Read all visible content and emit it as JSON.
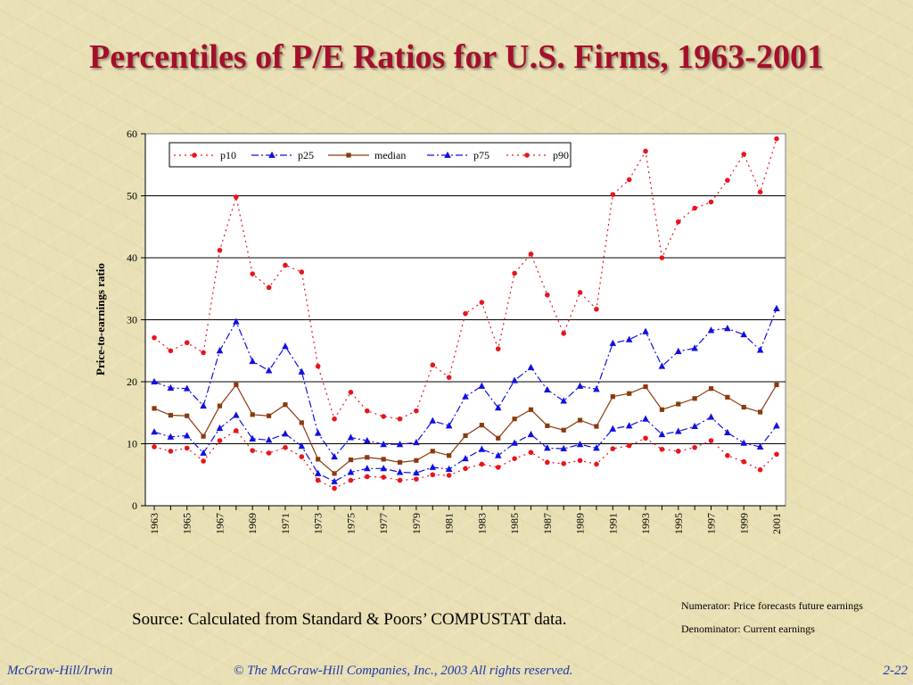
{
  "slide": {
    "title": "Percentiles of P/E Ratios for U.S. Firms, 1963-2001",
    "source": "Source:  Calculated from Standard & Poors’ COMPUSTAT data.",
    "note_numerator": "Numerator: Price forecasts future earnings",
    "note_denominator": "Denominator: Current earnings",
    "footer_left": "McGraw-Hill/Irwin",
    "footer_center": "© The McGraw-Hill Companies, Inc., 2003  All rights reserved.",
    "footer_right": "2-22"
  },
  "colors": {
    "title": "#a3102b",
    "p10": "#e8141c",
    "p25": "#1010e0",
    "median": "#8b3a0e",
    "p75": "#1010e0",
    "p90": "#e8141c",
    "footer_text": "#1c3aa8"
  },
  "chart_data": {
    "type": "line",
    "ylabel": "Price-to-earnings ratio",
    "xlabel": "",
    "ylim": [
      0,
      60
    ],
    "yticks": [
      0,
      10,
      20,
      30,
      40,
      50,
      60
    ],
    "grid": "horizontal",
    "legend_position": "top",
    "x": [
      1963,
      1964,
      1965,
      1966,
      1967,
      1968,
      1969,
      1970,
      1971,
      1972,
      1973,
      1974,
      1975,
      1976,
      1977,
      1978,
      1979,
      1980,
      1981,
      1982,
      1983,
      1984,
      1985,
      1986,
      1987,
      1988,
      1989,
      1990,
      1991,
      1992,
      1993,
      1994,
      1995,
      1996,
      1997,
      1998,
      1999,
      2000,
      2001
    ],
    "xtick_labels": [
      "1963",
      "1965",
      "1967",
      "1969",
      "1971",
      "1973",
      "1975",
      "1977",
      "1979",
      "1981",
      "1983",
      "1985",
      "1987",
      "1989",
      "1991",
      "1993",
      "1995",
      "1997",
      "1999",
      "2001"
    ],
    "series": [
      {
        "name": "p10",
        "key": "p10",
        "marker": "circle",
        "dash": "2 4",
        "values": [
          9.5,
          8.8,
          9.3,
          7.2,
          10.5,
          12.1,
          8.9,
          8.5,
          9.4,
          7.9,
          4.1,
          2.8,
          4.1,
          4.7,
          4.6,
          4.1,
          4.3,
          5.0,
          4.9,
          6.0,
          6.7,
          6.2,
          7.6,
          8.6,
          7.0,
          6.8,
          7.3,
          6.7,
          9.2,
          9.7,
          10.9,
          9.1,
          8.8,
          9.4,
          10.5,
          8.1,
          7.1,
          5.8,
          8.3
        ]
      },
      {
        "name": "p25",
        "key": "p25",
        "marker": "triangle",
        "dash": "8 3 2 3",
        "values": [
          11.9,
          11.1,
          11.3,
          8.5,
          12.5,
          14.6,
          10.8,
          10.6,
          11.6,
          9.6,
          5.2,
          3.9,
          5.4,
          6.0,
          6.0,
          5.4,
          5.3,
          6.2,
          5.9,
          7.6,
          9.1,
          8.1,
          10.1,
          11.5,
          9.3,
          9.2,
          9.9,
          9.3,
          12.4,
          12.9,
          14.0,
          11.5,
          12.0,
          12.8,
          14.3,
          11.8,
          10.1,
          9.5,
          12.9
        ]
      },
      {
        "name": "median",
        "key": "median",
        "marker": "square",
        "dash": "",
        "values": [
          15.7,
          14.6,
          14.5,
          11.2,
          16.1,
          19.5,
          14.7,
          14.5,
          16.3,
          13.4,
          7.5,
          5.2,
          7.4,
          7.8,
          7.5,
          7.0,
          7.3,
          8.8,
          8.1,
          11.3,
          13.0,
          10.9,
          14.0,
          15.5,
          12.9,
          12.2,
          13.8,
          12.8,
          17.6,
          18.1,
          19.2,
          15.5,
          16.4,
          17.3,
          18.9,
          17.5,
          15.9,
          15.1,
          19.5
        ]
      },
      {
        "name": "p75",
        "key": "p75",
        "marker": "triangle",
        "dash": "8 3 2 3",
        "values": [
          20.0,
          19.0,
          18.9,
          16.1,
          25.0,
          29.7,
          23.3,
          21.8,
          25.7,
          21.6,
          11.7,
          7.9,
          11.0,
          10.5,
          9.9,
          9.9,
          10.2,
          13.7,
          12.9,
          17.6,
          19.3,
          15.8,
          20.2,
          22.3,
          18.7,
          16.9,
          19.3,
          18.8,
          26.2,
          26.8,
          28.1,
          22.5,
          24.9,
          25.4,
          28.3,
          28.6,
          27.6,
          25.1,
          31.8
        ]
      },
      {
        "name": "p90",
        "key": "p90",
        "marker": "circle",
        "dash": "2 4",
        "values": [
          27.1,
          25.0,
          26.3,
          24.7,
          41.2,
          49.8,
          37.4,
          35.2,
          38.8,
          37.7,
          22.5,
          14.0,
          18.3,
          15.3,
          14.4,
          14.0,
          15.3,
          22.7,
          20.7,
          31.0,
          32.8,
          25.3,
          37.5,
          40.6,
          34.0,
          27.8,
          34.4,
          31.7,
          50.2,
          52.6,
          57.2,
          40.0,
          45.8,
          48.0,
          49.0,
          52.5,
          56.7,
          50.6,
          59.2
        ]
      }
    ]
  }
}
